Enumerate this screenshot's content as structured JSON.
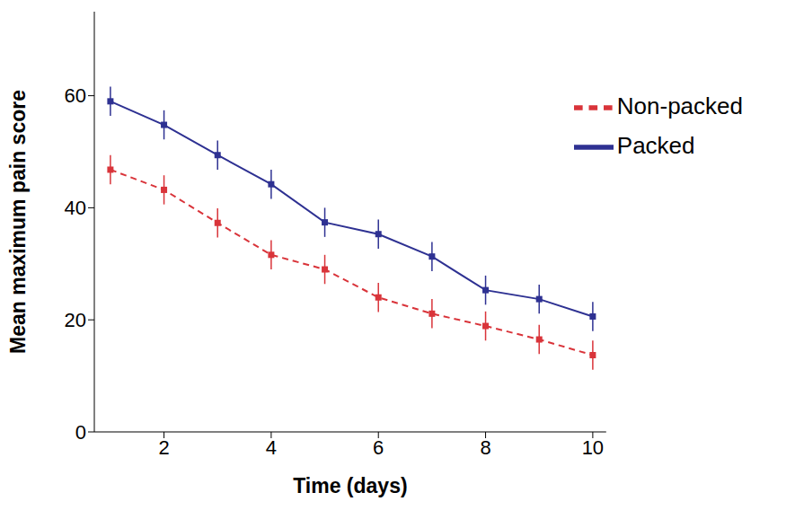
{
  "chart_data": {
    "type": "line",
    "x_label": "Time (days)",
    "y_label": "Mean maximum pain score",
    "x": [
      1,
      2,
      3,
      4,
      5,
      6,
      7,
      8,
      9,
      10
    ],
    "xlim": [
      0.7,
      10.25
    ],
    "xticks": [
      2,
      4,
      6,
      8,
      10
    ],
    "ylim": [
      0,
      75
    ],
    "yticks": [
      0,
      20,
      40,
      60
    ],
    "legend": "upper right",
    "series": [
      {
        "name": "Packed",
        "color": "#2e3192",
        "line_style": "solid",
        "marker": "square",
        "values": [
          59,
          54.8,
          49.4,
          44.2,
          37.4,
          35.3,
          31.3,
          25.3,
          23.7,
          20.6
        ],
        "errors": [
          2.6,
          2.6,
          2.6,
          2.6,
          2.6,
          2.6,
          2.6,
          2.6,
          2.6,
          2.6
        ]
      },
      {
        "name": "Non-packed",
        "color": "#d9343a",
        "line_style": "dashed",
        "marker": "square",
        "values": [
          46.8,
          43.2,
          37.3,
          31.6,
          29,
          24,
          21.1,
          18.9,
          16.5,
          13.7
        ],
        "errors": [
          2.6,
          2.6,
          2.6,
          2.6,
          2.6,
          2.6,
          2.6,
          2.6,
          2.6,
          2.6
        ]
      }
    ]
  }
}
